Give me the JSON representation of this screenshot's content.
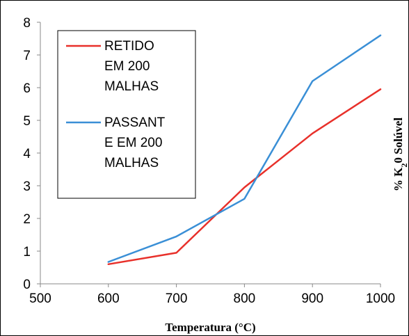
{
  "chart_data": {
    "type": "line",
    "xlabel": "Temperatura (°C)",
    "ylabel_parts": [
      "% K",
      "2",
      "0 Solúvel"
    ],
    "xlim": [
      500,
      1000
    ],
    "ylim": [
      0,
      8
    ],
    "x_ticks": [
      "500",
      "600",
      "700",
      "800",
      "900",
      "1000"
    ],
    "y_ticks": [
      "0",
      "1",
      "2",
      "3",
      "4",
      "5",
      "6",
      "7",
      "8"
    ],
    "grid": false,
    "legend_position": "top-left",
    "series": [
      {
        "name": "RETIDO EM 200 MALHAS",
        "name_lines": [
          "RETIDO",
          "EM 200",
          "MALHAS"
        ],
        "color": "#e8302a",
        "x": [
          600,
          700,
          800,
          900,
          1000
        ],
        "y": [
          0.6,
          0.95,
          2.95,
          4.6,
          5.95
        ]
      },
      {
        "name": "PASSANTE EM 200 MALHAS",
        "name_lines": [
          "PASSANT",
          "E EM 200",
          "MALHAS"
        ],
        "color": "#3a8fd6",
        "x": [
          600,
          700,
          800,
          900,
          1000
        ],
        "y": [
          0.67,
          1.45,
          2.6,
          6.2,
          7.6
        ]
      }
    ]
  }
}
